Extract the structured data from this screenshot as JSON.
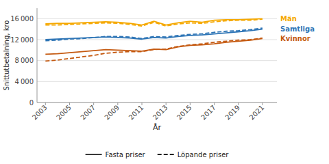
{
  "chart_data": {
    "type": "line",
    "x": [
      2003,
      2004,
      2005,
      2006,
      2007,
      2008,
      2009,
      2010,
      2011,
      2012,
      2013,
      2014,
      2015,
      2016,
      2017,
      2018,
      2019,
      2020,
      2021
    ],
    "series": [
      {
        "name": "Män",
        "color": "#F5A800",
        "line_style": "solid",
        "values": [
          15000,
          15100,
          15100,
          15200,
          15300,
          15400,
          15300,
          15100,
          14800,
          15500,
          14800,
          15200,
          15500,
          15300,
          15700,
          15800,
          15800,
          15900,
          16000
        ]
      },
      {
        "name": "Samtliga",
        "color": "#2E75B6",
        "line_style": "solid",
        "values": [
          12000,
          12100,
          12200,
          12300,
          12400,
          12500,
          12400,
          12300,
          12100,
          12400,
          12300,
          12600,
          12800,
          12900,
          13100,
          13300,
          13500,
          13700,
          14000
        ]
      },
      {
        "name": "Kvinnor",
        "color": "#C55A11",
        "line_style": "solid",
        "values": [
          9200,
          9300,
          9500,
          9700,
          9900,
          10100,
          10000,
          9900,
          9800,
          10200,
          10100,
          10600,
          10900,
          11000,
          11200,
          11500,
          11700,
          11900,
          12200
        ]
      },
      {
        "name": "Män",
        "color": "#F5A800",
        "line_style": "dashed",
        "values": [
          14800,
          14800,
          14900,
          15000,
          15100,
          15200,
          15100,
          14900,
          14600,
          15300,
          14600,
          15000,
          15200,
          15100,
          15400,
          15600,
          15700,
          15700,
          15900
        ]
      },
      {
        "name": "Samtliga",
        "color": "#2E75B6",
        "line_style": "dashed",
        "values": [
          11800,
          11900,
          12100,
          12200,
          12400,
          12600,
          12600,
          12500,
          12200,
          12600,
          12500,
          12800,
          13000,
          13100,
          13400,
          13600,
          13700,
          13900,
          14200
        ]
      },
      {
        "name": "Kvinnor",
        "color": "#C55A11",
        "line_style": "dashed",
        "values": [
          7900,
          8100,
          8400,
          8700,
          9000,
          9400,
          9600,
          9700,
          9700,
          10100,
          10200,
          10700,
          11000,
          11200,
          11500,
          11700,
          11900,
          12000,
          12300
        ]
      }
    ],
    "xlim": [
      2002.3,
      2022.2
    ],
    "xticks": [
      2003,
      2005,
      2007,
      2009,
      2011,
      2013,
      2015,
      2017,
      2019,
      2021
    ],
    "ylim": [
      0,
      18000
    ],
    "yticks": [
      0,
      {
        "value": 4000,
        "label": "4 000"
      },
      {
        "value": 8000,
        "label": "8 000"
      },
      {
        "value": 12000,
        "label": "12 000"
      },
      {
        "value": 16000,
        "label": "16 000"
      }
    ],
    "xlabel": "År",
    "ylabel": "Snittutbetalning, kro",
    "grid": true,
    "legend": "bottom",
    "legend_entries": [
      {
        "label": "Fasta priser",
        "line_style": "solid"
      },
      {
        "label": "Löpande priser",
        "line_style": "dashed"
      }
    ]
  }
}
